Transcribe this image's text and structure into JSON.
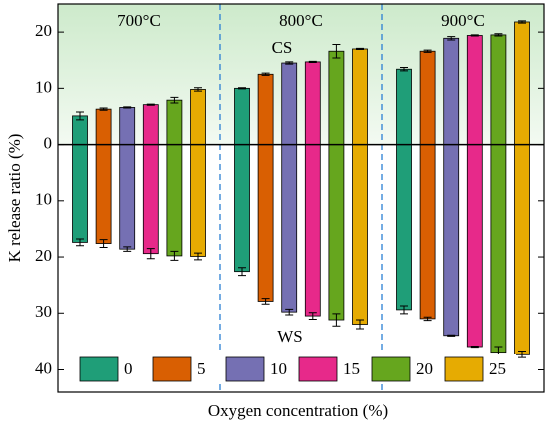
{
  "chart_data": {
    "type": "bar",
    "ylabel": "K release ratio (%)",
    "xlabel": "Oxygen concentration (%)",
    "groups": [
      "700°C",
      "800°C",
      "900°C"
    ],
    "annotations": [
      "CS",
      "WS"
    ],
    "ylim": [
      -44,
      25
    ],
    "yticks": [
      20,
      10,
      0,
      {
        "value": -10,
        "label": "10"
      },
      {
        "value": -20,
        "label": "20"
      },
      {
        "value": -30,
        "label": "30"
      },
      {
        "value": -40,
        "label": "40"
      }
    ],
    "legend": "bottom",
    "series": [
      {
        "name": "0",
        "color": "#1f9e78",
        "values": [
          5.1,
          10.0,
          13.4
        ],
        "errors": [
          0.7,
          0.1,
          0.3
        ],
        "ws_values": [
          -17.4,
          -22.6,
          -29.4
        ],
        "ws_errors": [
          0.6,
          0.7,
          0.7
        ]
      },
      {
        "name": "5",
        "color": "#d95f02",
        "values": [
          6.3,
          12.5,
          16.6
        ],
        "errors": [
          0.2,
          0.2,
          0.2
        ],
        "ws_values": [
          -17.6,
          -27.9,
          -31.0
        ],
        "ws_errors": [
          0.7,
          0.5,
          0.3
        ]
      },
      {
        "name": "10",
        "color": "#7570b3",
        "values": [
          6.6,
          14.5,
          18.9
        ],
        "errors": [
          0.1,
          0.2,
          0.3
        ],
        "ws_values": [
          -18.6,
          -29.8,
          -34.0
        ],
        "ws_errors": [
          0.4,
          0.5,
          0.1
        ]
      },
      {
        "name": "15",
        "color": "#e7298a",
        "values": [
          7.1,
          14.7,
          19.4
        ],
        "errors": [
          0.1,
          0.1,
          0.1
        ],
        "ws_values": [
          -19.4,
          -30.5,
          -36.0
        ],
        "ws_errors": [
          0.9,
          0.6,
          0.1
        ]
      },
      {
        "name": "20",
        "color": "#66a61e",
        "values": [
          7.9,
          16.6,
          19.5
        ],
        "errors": [
          0.5,
          1.2,
          0.2
        ],
        "ws_values": [
          -19.8,
          -31.2,
          -37.0
        ],
        "ws_errors": [
          0.8,
          1.1,
          1.0
        ]
      },
      {
        "name": "25",
        "color": "#e6ab02",
        "values": [
          9.8,
          17.0,
          21.8
        ],
        "errors": [
          0.3,
          0.1,
          0.2
        ],
        "ws_values": [
          -19.9,
          -32.0,
          -37.3
        ],
        "ws_errors": [
          0.6,
          0.8,
          0.5
        ]
      }
    ]
  }
}
